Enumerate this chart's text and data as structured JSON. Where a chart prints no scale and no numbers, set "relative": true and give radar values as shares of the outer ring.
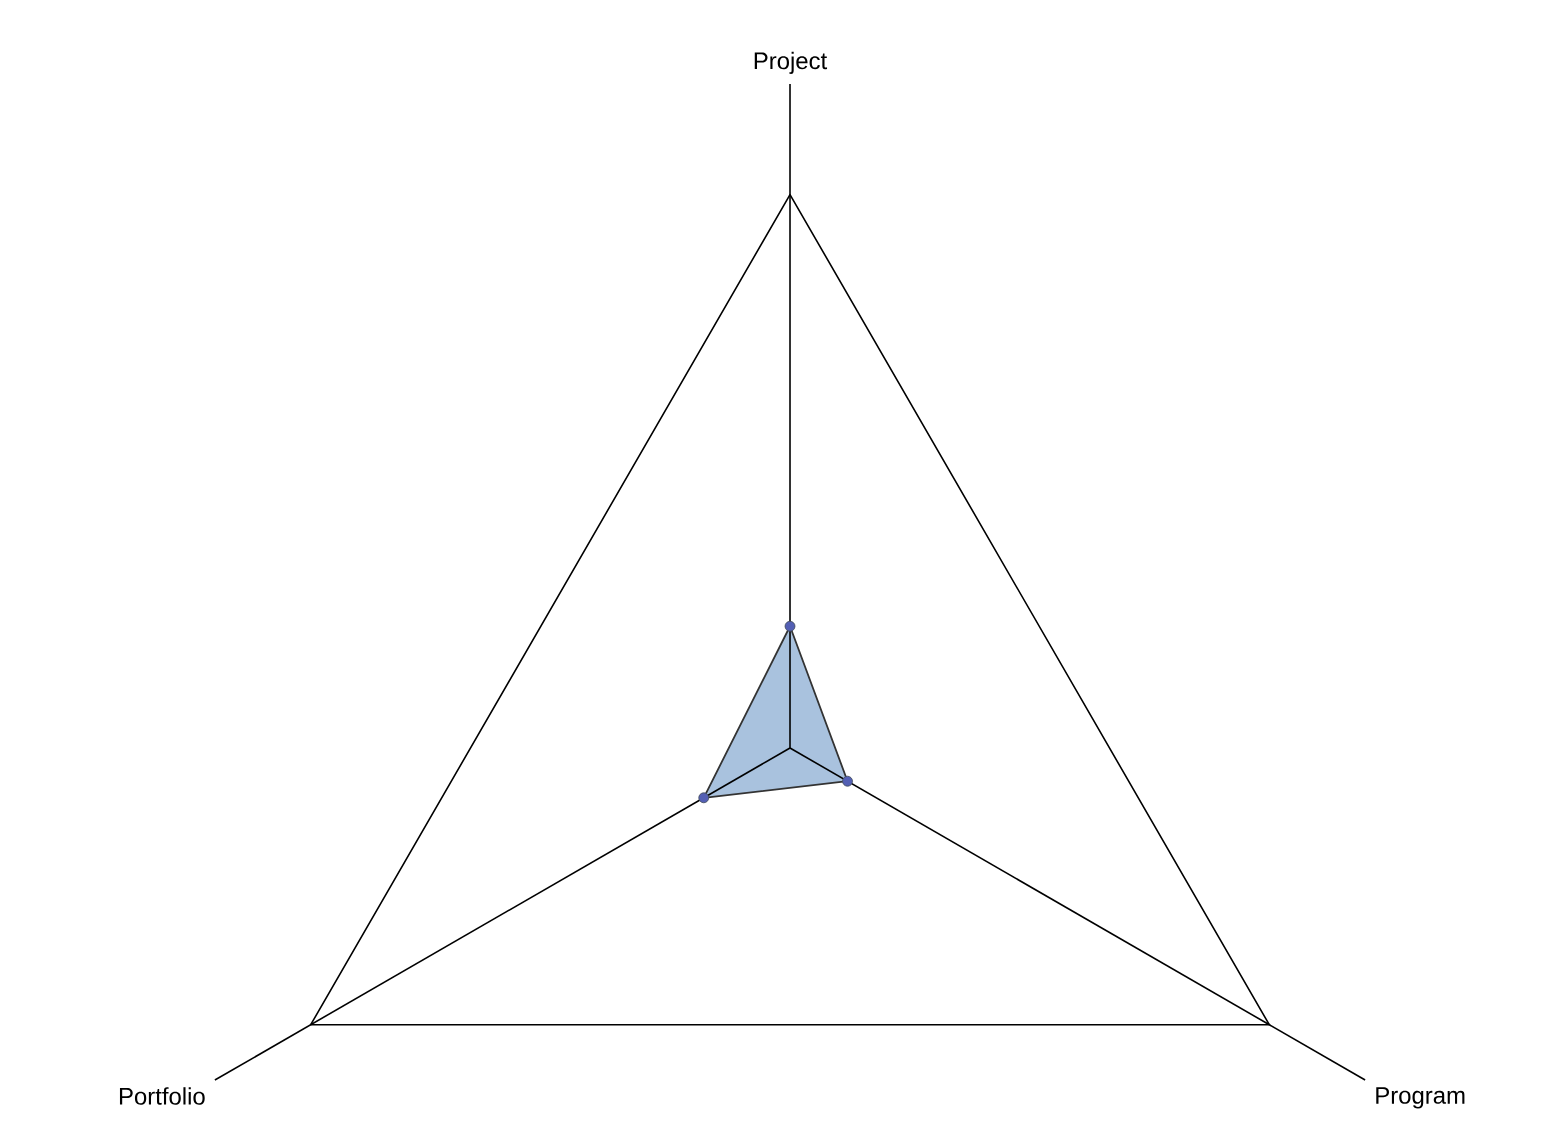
{
  "chart_data": {
    "type": "radar",
    "relative": true,
    "marker": "circle",
    "categories": [
      "Project",
      "Program",
      "Portfolio"
    ],
    "series": [
      {
        "color": "#a9c2de",
        "values": [
          0.22,
          0.12,
          0.18
        ]
      }
    ]
  }
}
